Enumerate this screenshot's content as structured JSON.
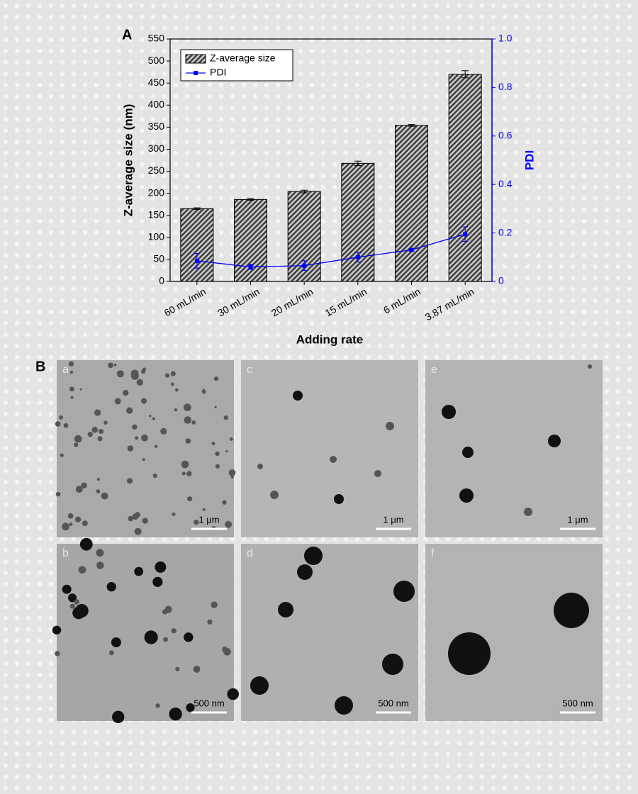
{
  "chart_data": {
    "type": "bar",
    "panel_label": "A",
    "x_label": "Adding rate",
    "y_label": "Z-average size (nm)",
    "y2_label": "PDI",
    "categories": [
      "60 mL/min",
      "30 mL/min",
      "20 mL/min",
      "15 mL/min",
      "6 mL/min",
      "3.87 mL/min"
    ],
    "series": [
      {
        "name": "Z-average size",
        "color": "#404040",
        "values": [
          165,
          186,
          204,
          268,
          354,
          470
        ],
        "errors": [
          2,
          2,
          3,
          5,
          2,
          8
        ]
      },
      {
        "name": "PDI",
        "color": "#0000ff",
        "axis": "y2",
        "values": [
          0.085,
          0.06,
          0.065,
          0.1,
          0.13,
          0.195
        ],
        "errors": [
          0.03,
          0.01,
          0.02,
          0.02,
          0.005,
          0.03
        ]
      }
    ],
    "ylim": [
      0,
      550
    ],
    "yticks": [
      0,
      50,
      100,
      150,
      200,
      250,
      300,
      350,
      400,
      450,
      500,
      550
    ],
    "y2lim": [
      0,
      1
    ],
    "y2ticks": [
      0,
      0.2,
      0.4,
      0.6,
      0.8,
      {
        "value": 1,
        "label": "1.0"
      }
    ],
    "legend": "upper left"
  },
  "panel_b": {
    "label": "B",
    "images": [
      {
        "label": "a",
        "scale": "1 μm"
      },
      {
        "label": "c",
        "scale": "1 μm"
      },
      {
        "label": "e",
        "scale": "1 μm"
      },
      {
        "label": "b",
        "scale": "500 nm"
      },
      {
        "label": "d",
        "scale": "500 nm"
      },
      {
        "label": "f",
        "scale": "500 nm"
      }
    ]
  }
}
